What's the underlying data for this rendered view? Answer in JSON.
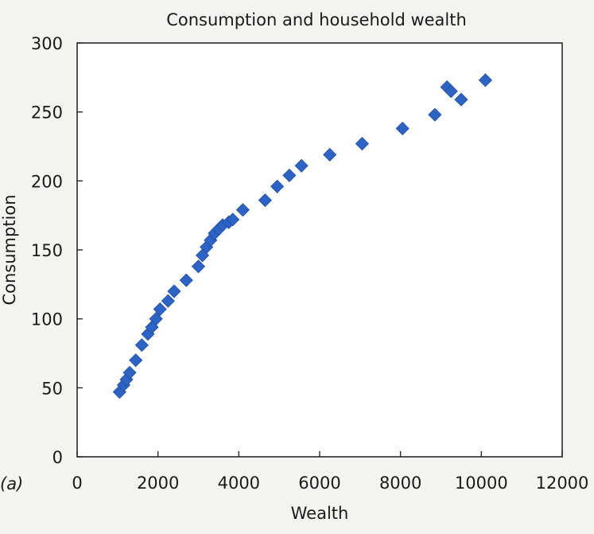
{
  "panel_label": "(a)",
  "colors": {
    "point": "#2c63c4",
    "frame": "#2a2a2a",
    "background": "#f3f3f1"
  },
  "chart_data": {
    "type": "scatter",
    "title": "Consumption and household wealth",
    "xlabel": "Wealth",
    "ylabel": "Consumption",
    "xlim": [
      0,
      12000
    ],
    "ylim": [
      0,
      300
    ],
    "xticks": [
      0,
      2000,
      4000,
      6000,
      8000,
      10000,
      12000
    ],
    "yticks": [
      0,
      50,
      100,
      150,
      200,
      250,
      300
    ],
    "xtick_labels": [
      "0",
      "2000",
      "4000",
      "6000",
      "8000",
      "10000",
      "12000"
    ],
    "ytick_labels": [
      "0",
      "50",
      "100",
      "150",
      "200",
      "250",
      "300"
    ],
    "grid": false,
    "legend": "none",
    "marker": "diamond",
    "series": [
      {
        "points": [
          {
            "x": 1050,
            "y": 47
          },
          {
            "x": 1150,
            "y": 52
          },
          {
            "x": 1220,
            "y": 56
          },
          {
            "x": 1300,
            "y": 61
          },
          {
            "x": 1450,
            "y": 70
          },
          {
            "x": 1600,
            "y": 81
          },
          {
            "x": 1750,
            "y": 89
          },
          {
            "x": 1850,
            "y": 94
          },
          {
            "x": 1950,
            "y": 100
          },
          {
            "x": 2050,
            "y": 107
          },
          {
            "x": 2250,
            "y": 113
          },
          {
            "x": 2400,
            "y": 120
          },
          {
            "x": 2700,
            "y": 128
          },
          {
            "x": 3000,
            "y": 138
          },
          {
            "x": 3100,
            "y": 146
          },
          {
            "x": 3200,
            "y": 152
          },
          {
            "x": 3300,
            "y": 157
          },
          {
            "x": 3400,
            "y": 162
          },
          {
            "x": 3500,
            "y": 165
          },
          {
            "x": 3600,
            "y": 168
          },
          {
            "x": 3750,
            "y": 170
          },
          {
            "x": 3850,
            "y": 172
          },
          {
            "x": 4100,
            "y": 179
          },
          {
            "x": 4650,
            "y": 186
          },
          {
            "x": 4950,
            "y": 196
          },
          {
            "x": 5250,
            "y": 204
          },
          {
            "x": 5550,
            "y": 211
          },
          {
            "x": 6250,
            "y": 219
          },
          {
            "x": 7050,
            "y": 227
          },
          {
            "x": 8050,
            "y": 238
          },
          {
            "x": 8850,
            "y": 248
          },
          {
            "x": 9150,
            "y": 268
          },
          {
            "x": 9250,
            "y": 265
          },
          {
            "x": 9500,
            "y": 259
          },
          {
            "x": 10100,
            "y": 273
          }
        ]
      }
    ]
  }
}
